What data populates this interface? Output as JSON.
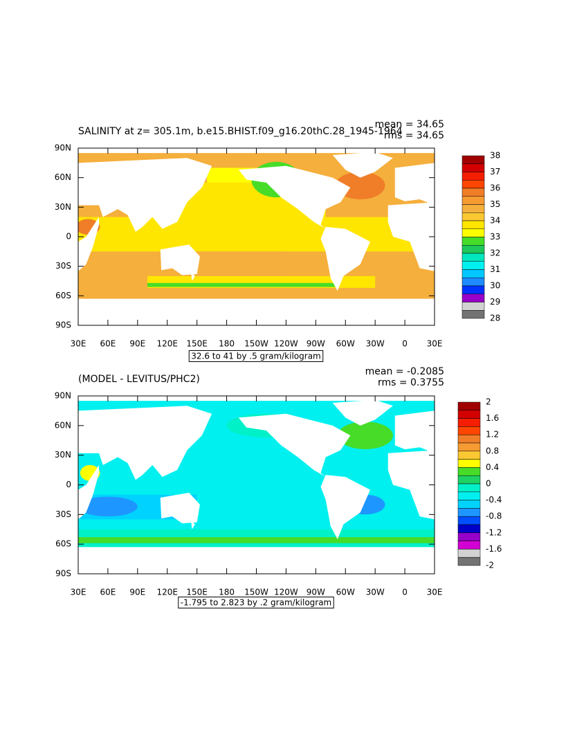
{
  "panels": [
    {
      "title": "SALINITY at z= 305.1m, b.e15.BHIST.f09_g16.20thC.28_1945-1964",
      "mean": "mean = 34.65",
      "rms": "rms = 34.65",
      "contour_note": "32.6 to 41 by .5 gram/kilogram",
      "colorbar": {
        "levels": [
          38,
          37,
          36,
          35,
          34,
          33,
          32,
          31,
          30,
          29,
          28
        ],
        "colors": [
          "#a00000",
          "#d20000",
          "#f51e00",
          "#ff4600",
          "#f07d28",
          "#f59b32",
          "#f5af3c",
          "#fac832",
          "#ffe600",
          "#ffff00",
          "#46dc28",
          "#1ec85a",
          "#00e6be",
          "#00f0f0",
          "#00c8ff",
          "#1e8cff",
          "#0032ff",
          "#9600c8",
          "#d2d2d2",
          "#737373"
        ]
      }
    },
    {
      "title": "(MODEL - LEVITUS/PHC2)",
      "mean": "mean = -0.2085",
      "rms": "rms = 0.3755",
      "contour_note": "-1.795 to 2.823 by .2 gram/kilogram",
      "colorbar": {
        "levels": [
          2,
          1.6,
          1.2,
          0.8,
          0.4,
          0,
          -0.4,
          -0.8,
          -1.2,
          -1.6,
          -2
        ],
        "colors": [
          "#a00000",
          "#d20000",
          "#f51e00",
          "#ff4600",
          "#f07d28",
          "#f59b32",
          "#fac832",
          "#ffff00",
          "#46dc28",
          "#1ed264",
          "#00f0c8",
          "#00f0f0",
          "#00d2ff",
          "#1e96ff",
          "#0050ff",
          "#0000c8",
          "#9600c8",
          "#d200d2",
          "#d2d2d2",
          "#737373"
        ]
      }
    }
  ],
  "lat_labels": [
    "90N",
    "60N",
    "30N",
    "0",
    "30S",
    "60S",
    "90S"
  ],
  "lon_labels": [
    "30E",
    "60E",
    "90E",
    "120E",
    "150E",
    "180",
    "150W",
    "120W",
    "90W",
    "60W",
    "30W",
    "0",
    "30E"
  ]
}
